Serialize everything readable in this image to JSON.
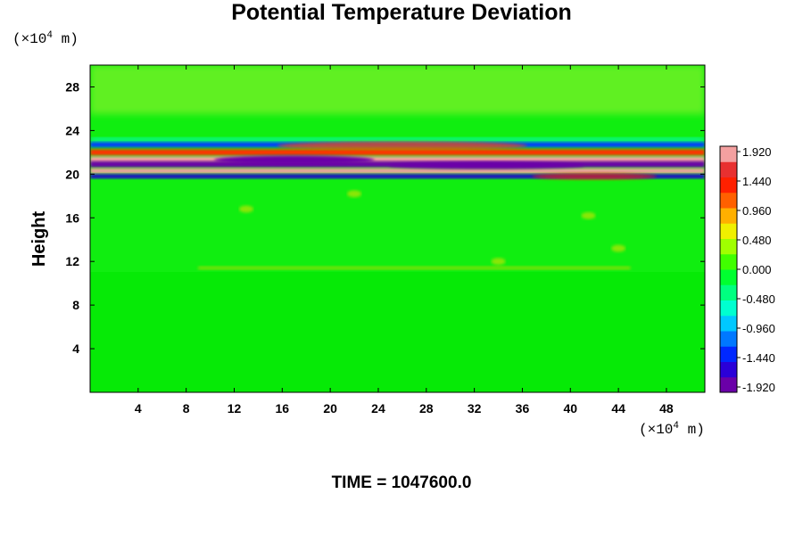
{
  "chart_data": {
    "type": "heatmap",
    "title": "Potential Temperature Deviation",
    "ylabel": "Height",
    "xlabel": "",
    "x_unit": {
      "prefix": "(×10",
      "exp": "4",
      "suffix": " m)"
    },
    "y_unit": {
      "prefix": "(×10",
      "exp": "4",
      "suffix": " m)"
    },
    "xlim": [
      0,
      51.2
    ],
    "ylim": [
      0,
      30
    ],
    "x_ticks": [
      4,
      8,
      12,
      16,
      20,
      24,
      28,
      32,
      36,
      40,
      44,
      48
    ],
    "y_ticks": [
      4,
      8,
      12,
      16,
      20,
      24,
      28
    ],
    "colorbar": {
      "min": -1.92,
      "max": 1.92,
      "tick_labels": [
        "1.920",
        "1.440",
        "0.960",
        "0.480",
        "0.000",
        "-0.480",
        "-0.960",
        "-1.440",
        "-1.920"
      ],
      "colors": [
        "#6a00a8",
        "#2a00d8",
        "#0028ff",
        "#0078ff",
        "#00c8ff",
        "#00ffd0",
        "#00ff80",
        "#00ff30",
        "#40ff00",
        "#a0ff00",
        "#f0f000",
        "#ffb000",
        "#ff6000",
        "#ff2000",
        "#e83030",
        "#f4a0a0"
      ]
    },
    "grid": false,
    "legend": "colorbar-right"
  },
  "footer": {
    "time_label": "TIME = 1047600.0"
  }
}
